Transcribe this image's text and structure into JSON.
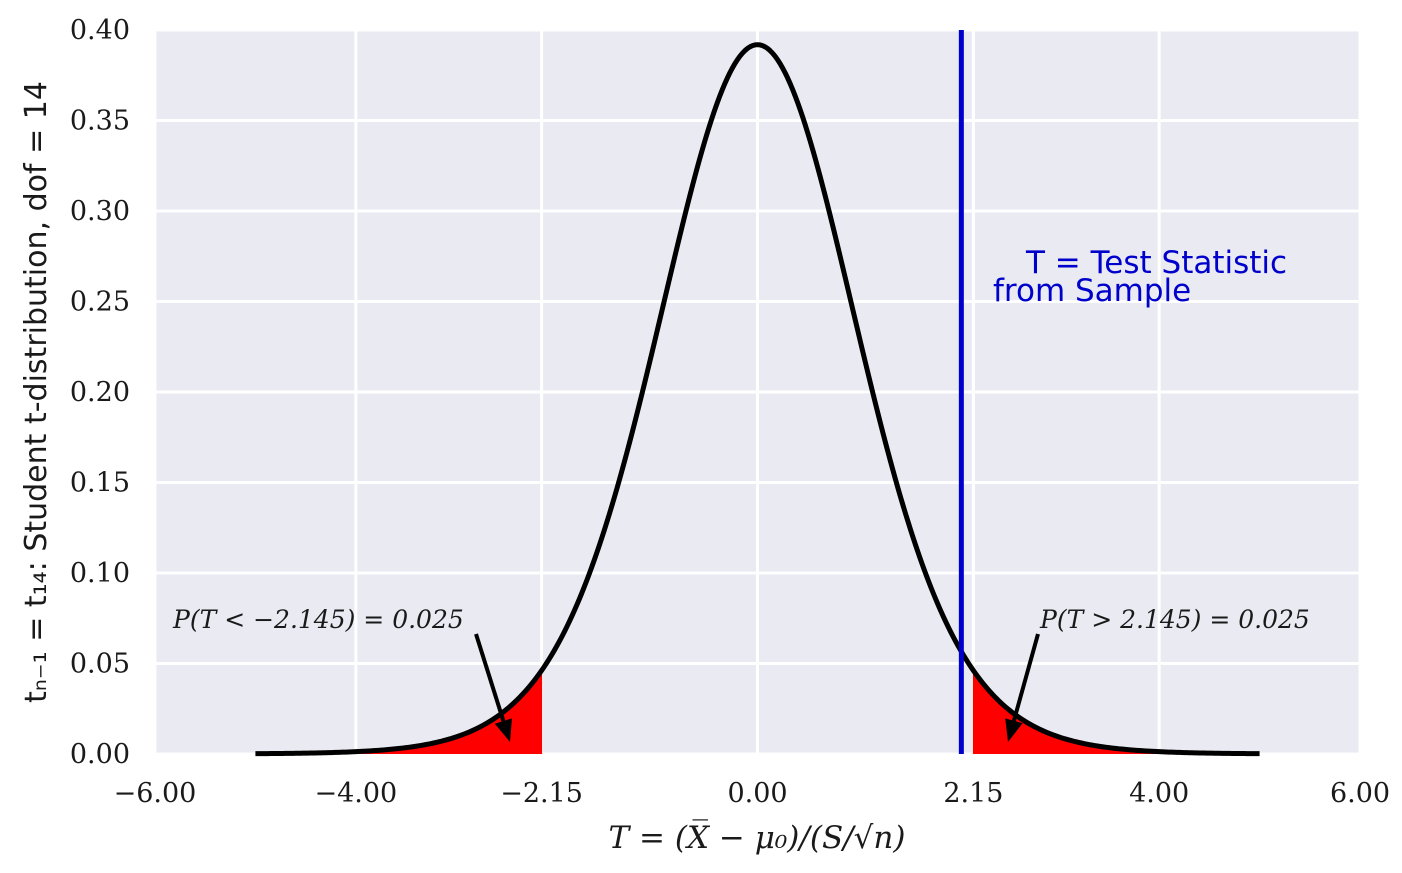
{
  "chart_data": {
    "type": "area",
    "distribution": "Student t",
    "dof": 14,
    "xlim": [
      -6.0,
      6.0
    ],
    "ylim": [
      0.0,
      0.4
    ],
    "x_ticks": [
      -6.0,
      -4.0,
      -2.15,
      0.0,
      2.15,
      4.0,
      6.0
    ],
    "x_tick_labels": [
      "−6.00",
      "−4.00",
      "−2.15",
      "0.00",
      "2.15",
      "4.00",
      "6.00"
    ],
    "y_ticks": [
      0.0,
      0.05,
      0.1,
      0.15,
      0.2,
      0.25,
      0.3,
      0.35,
      0.4
    ],
    "y_tick_labels": [
      "0.00",
      "0.05",
      "0.10",
      "0.15",
      "0.20",
      "0.25",
      "0.30",
      "0.35",
      "0.40"
    ],
    "curve_x_range": [
      -5.0,
      5.0
    ],
    "critical_value": 2.145,
    "test_statistic": 2.03,
    "ylabel": "tₙ₋₁ = t₁₄: Student t-distribution, dof = 14",
    "xlabel": "T = (X̅ − μ₀)/(S/√n)",
    "grid": true,
    "annotations": {
      "left_tail": "P(T < −2.145) = 0.025",
      "right_tail": "P(T > 2.145) = 0.025",
      "test_stat_line1": "T = Test Statistic",
      "test_stat_line2": "from Sample"
    },
    "colors": {
      "background": "#eaeaf2",
      "grid": "#ffffff",
      "curve": "#000000",
      "tails": "#ff0000",
      "test_statistic_line": "#0000cc"
    }
  }
}
